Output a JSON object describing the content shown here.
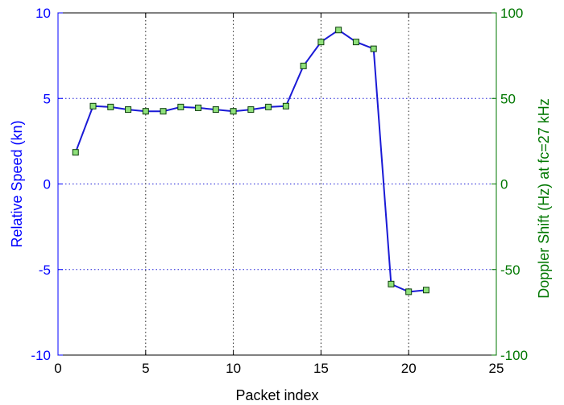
{
  "chart_data": {
    "type": "line",
    "xlabel": "Packet index",
    "ylabel_left": "Relative Speed (kn)",
    "ylabel_right": "Doppler Shift (Hz) at fc=27 kHz",
    "xlim": [
      0,
      25
    ],
    "ylim_left": [
      -10,
      10
    ],
    "ylim_right": [
      -100,
      100
    ],
    "x_ticks": [
      0,
      5,
      10,
      15,
      20,
      25
    ],
    "y_ticks_left": [
      -10,
      -5,
      0,
      5,
      10
    ],
    "y_ticks_right": [
      -100,
      -50,
      0,
      50,
      100
    ],
    "grid": true,
    "colors": {
      "line": "#1a1ad6",
      "marker_fill": "#8fe07a",
      "marker_edge": "#0b3d0b",
      "left_axis": "#0000ff",
      "right_axis": "#007700",
      "grid": "#1a1ad6",
      "vgrid": "#222222"
    },
    "series": [
      {
        "x": [
          1,
          2,
          3,
          4,
          5,
          6,
          7,
          8,
          9,
          10,
          11,
          12,
          13,
          14,
          15,
          16,
          17,
          18,
          19,
          20,
          21
        ],
        "values": [
          1.85,
          4.55,
          4.5,
          4.35,
          4.25,
          4.25,
          4.5,
          4.45,
          4.35,
          4.25,
          4.35,
          4.5,
          4.55,
          6.9,
          8.3,
          9.0,
          8.3,
          7.9,
          -5.85,
          -6.3,
          -6.2
        ]
      }
    ]
  }
}
